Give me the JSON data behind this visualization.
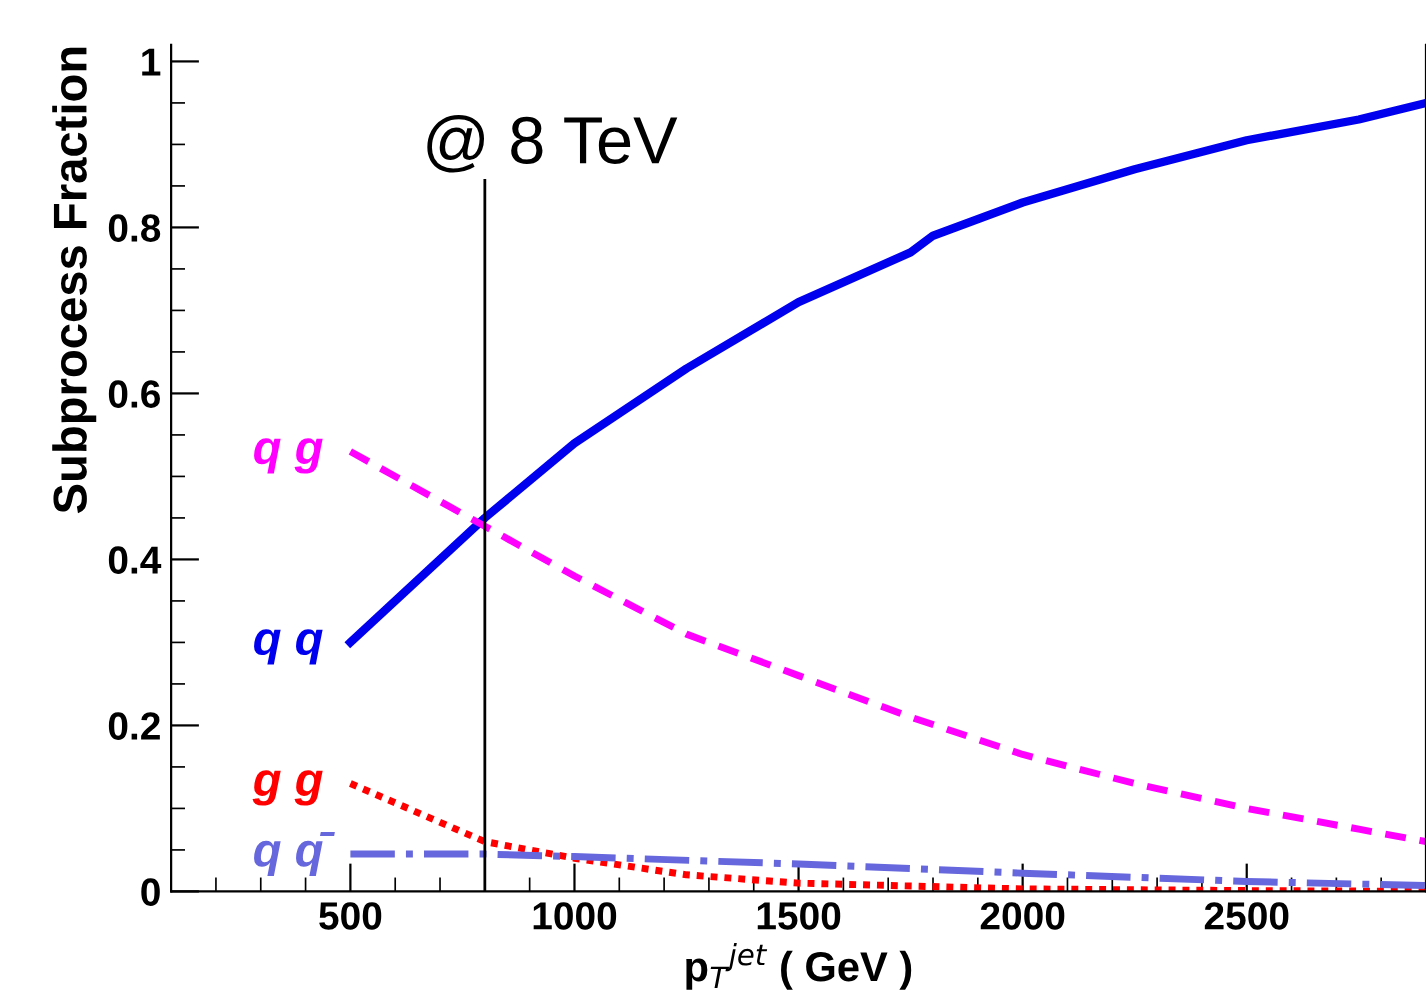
{
  "chart_data": {
    "type": "line",
    "ylabel": "Subprocess Fraction",
    "xlabel": "p$_{T}$$^{jet}$ ( GeV )",
    "annotations": [
      "@ 8 TeV"
    ],
    "series": [
      {
        "name": "q q",
        "color": "#0000ee",
        "line_style": "solid",
        "x": [
          500,
          800,
          1000,
          1250,
          1500,
          1750,
          1800,
          2000,
          2250,
          2500,
          2750,
          2900
        ],
        "values": [
          0.3,
          0.45,
          0.54,
          0.63,
          0.71,
          0.77,
          0.79,
          0.83,
          0.87,
          0.905,
          0.93,
          0.95
        ]
      },
      {
        "name": "q g",
        "color": "#ff00ff",
        "line_style": "dashed",
        "x": [
          500,
          800,
          1000,
          1250,
          1500,
          1750,
          2000,
          2250,
          2500,
          2750,
          2900
        ],
        "values": [
          0.53,
          0.44,
          0.38,
          0.31,
          0.26,
          0.21,
          0.165,
          0.13,
          0.1,
          0.075,
          0.06
        ]
      },
      {
        "name": "g g",
        "color": "#ff0000",
        "line_style": "dotted",
        "x": [
          500,
          800,
          1000,
          1250,
          1500,
          2000,
          2500,
          2900
        ],
        "values": [
          0.13,
          0.06,
          0.04,
          0.02,
          0.01,
          0.003,
          0.001,
          0.0
        ]
      },
      {
        "name": "q q̄",
        "color": "#6666dd",
        "line_style": "dashdot",
        "x": [
          500,
          800,
          1000,
          1500,
          2000,
          2500,
          2900
        ],
        "values": [
          0.045,
          0.045,
          0.042,
          0.033,
          0.022,
          0.012,
          0.007
        ]
      }
    ],
    "xlim": [
      100,
      2900
    ],
    "ylim": [
      0,
      1.02
    ],
    "xticks": [
      500,
      1000,
      1500,
      2000,
      2500
    ],
    "yticks": [
      0,
      0.2,
      0.4,
      0.6,
      0.8,
      {
        "value": 1,
        "label": "1"
      }
    ],
    "ref_lines": [
      {
        "axis": "x",
        "value": 800,
        "color": "#000000"
      }
    ],
    "grid": false,
    "legend": false,
    "marker": "none"
  }
}
